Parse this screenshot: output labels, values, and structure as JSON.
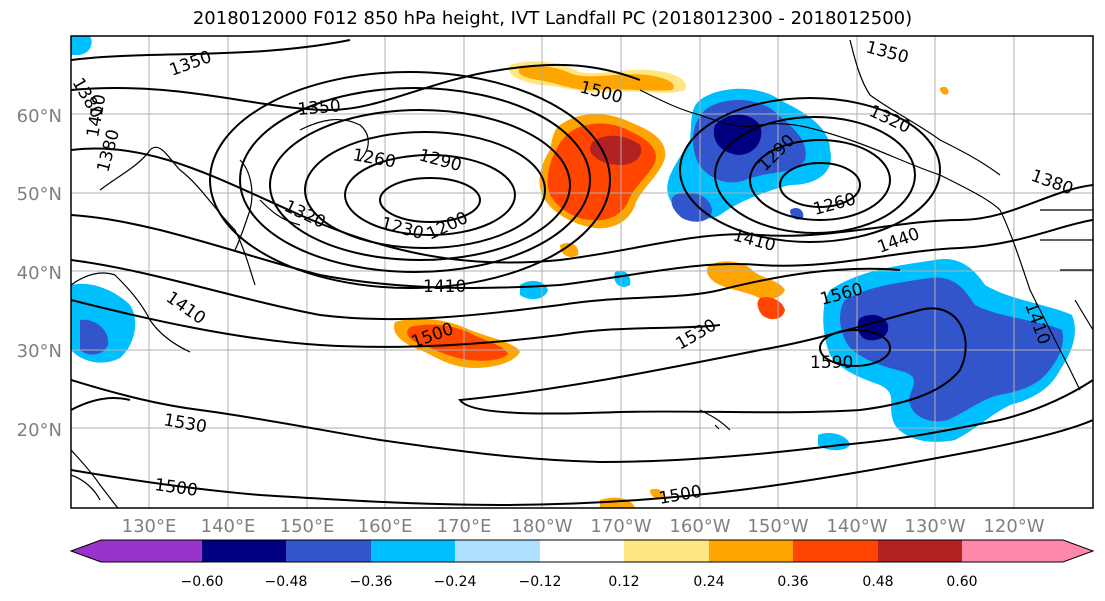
{
  "title": "2018012000 F012 850 hPa height, IVT Landfall PC (2018012300 - 2018012500)",
  "map": {
    "lat_ticks": [
      "20°N",
      "30°N",
      "40°N",
      "50°N",
      "60°N"
    ],
    "lon_ticks": [
      "130°E",
      "140°E",
      "150°E",
      "160°E",
      "170°E",
      "180°W",
      "170°W",
      "160°W",
      "150°W",
      "140°W",
      "130°W",
      "120°W"
    ],
    "contour_labels": [
      "1350",
      "1380",
      "1410",
      "1350",
      "1380",
      "1260",
      "1290",
      "1320",
      "1230",
      "1200",
      "1410",
      "1410",
      "1500",
      "1500",
      "1530",
      "1500",
      "1350",
      "1320",
      "1290",
      "1260",
      "1410",
      "1440",
      "1380",
      "1560",
      "1530",
      "1590",
      "1500",
      "1410"
    ],
    "colors": {
      "neg": [
        "#9933cc",
        "#000080",
        "#3355cc",
        "#00bfff",
        "#aee0ff"
      ],
      "pos": [
        "#ffe680",
        "#ffa500",
        "#ff4500",
        "#b22222",
        "#ff88aa"
      ],
      "coast": "#000000",
      "grid": "#b0b0b0"
    }
  },
  "colorbar": {
    "ticks": [
      "−0.60",
      "−0.48",
      "−0.36",
      "−0.24",
      "−0.12",
      "0.12",
      "0.24",
      "0.36",
      "0.48",
      "0.60"
    ],
    "colors": [
      "#9933cc",
      "#000080",
      "#3355cc",
      "#00bfff",
      "#aee0ff",
      "#ffffff",
      "#ffe680",
      "#ffa500",
      "#ff4500",
      "#b22222",
      "#ff88aa"
    ]
  }
}
